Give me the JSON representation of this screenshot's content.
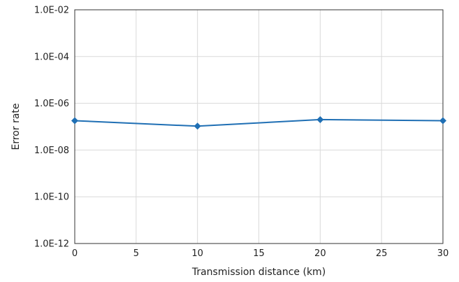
{
  "chart_data": {
    "type": "line",
    "title": "",
    "xlabel": "Transmission distance (km)",
    "ylabel": "Error rate",
    "xlim": [
      0,
      30
    ],
    "ylim": [
      1e-12,
      0.01
    ],
    "yscale": "log",
    "grid": true,
    "x_ticks": [
      0,
      5,
      10,
      15,
      20,
      25,
      30
    ],
    "x_tick_labels": [
      "0",
      "5",
      "10",
      "15",
      "20",
      "25",
      "30"
    ],
    "y_ticks": [
      0.01,
      0.0001,
      1e-06,
      1e-08,
      1e-10,
      1e-12
    ],
    "y_tick_labels": [
      "1.0E-02",
      "1.0E-04",
      "1.0E-06",
      "1.0E-08",
      "1.0E-10",
      "1.0E-12"
    ],
    "series": [
      {
        "color": "#1f6fb4",
        "marker": "diamond",
        "x": [
          0,
          10,
          20,
          30
        ],
        "y": [
          1.8e-07,
          1.05e-07,
          2e-07,
          1.8e-07
        ]
      }
    ]
  }
}
